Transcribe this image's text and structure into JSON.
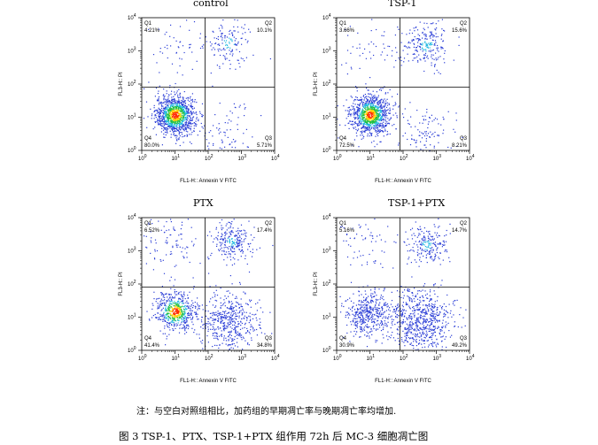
{
  "chart_data": [
    {
      "type": "scatter",
      "title": "control",
      "xlabel": "FL1-H:: Annexin V FITC",
      "ylabel": "FL3-H:: PI",
      "xscale": "log",
      "yscale": "log",
      "xlim": [
        1,
        10000
      ],
      "ylim": [
        1,
        10000
      ],
      "xticks": [
        "10^0",
        "10^1",
        "10^2",
        "10^3",
        "10^4"
      ],
      "yticks": [
        "10^0",
        "10^1",
        "10^2",
        "10^3",
        "10^4"
      ],
      "gate_x": 80,
      "gate_y": 80,
      "quadrants": [
        {
          "name": "Q1",
          "percent": "4.21%"
        },
        {
          "name": "Q2",
          "percent": "10.1%"
        },
        {
          "name": "Q3",
          "percent": "5.71%"
        },
        {
          "name": "Q4",
          "percent": "80.0%"
        }
      ],
      "clusters": [
        {
          "x": 10,
          "y": 12,
          "spread": 0.3,
          "share": 0.8,
          "dense": true
        },
        {
          "x": 400,
          "y": 1800,
          "spread": 0.35,
          "share": 0.1
        },
        {
          "x": 400,
          "y": 3,
          "spread": 0.45,
          "share": 0.06
        },
        {
          "x": 8,
          "y": 1500,
          "spread": 0.5,
          "share": 0.04
        }
      ]
    },
    {
      "type": "scatter",
      "title": "TSP-1",
      "xlabel": "FL1-H:: Annexin V FITC",
      "ylabel": "FL3-H:: PI",
      "xscale": "log",
      "yscale": "log",
      "xlim": [
        1,
        10000
      ],
      "ylim": [
        1,
        10000
      ],
      "xticks": [
        "10^0",
        "10^1",
        "10^2",
        "10^3",
        "10^4"
      ],
      "yticks": [
        "10^0",
        "10^1",
        "10^2",
        "10^3",
        "10^4"
      ],
      "gate_x": 80,
      "gate_y": 80,
      "quadrants": [
        {
          "name": "Q1",
          "percent": "3.66%"
        },
        {
          "name": "Q2",
          "percent": "15.6%"
        },
        {
          "name": "Q3",
          "percent": "8.21%"
        },
        {
          "name": "Q4",
          "percent": "72.5%"
        }
      ],
      "clusters": [
        {
          "x": 10,
          "y": 12,
          "spread": 0.3,
          "share": 0.72,
          "dense": true
        },
        {
          "x": 500,
          "y": 1500,
          "spread": 0.35,
          "share": 0.16
        },
        {
          "x": 400,
          "y": 3,
          "spread": 0.45,
          "share": 0.08
        },
        {
          "x": 8,
          "y": 1500,
          "spread": 0.5,
          "share": 0.04
        }
      ]
    },
    {
      "type": "scatter",
      "title": "PTX",
      "xlabel": "FL1-H:: Annexin V FITC",
      "ylabel": "FL3-H:: PI",
      "xscale": "log",
      "yscale": "log",
      "xlim": [
        1,
        10000
      ],
      "ylim": [
        1,
        10000
      ],
      "xticks": [
        "10^0",
        "10^1",
        "10^2",
        "10^3",
        "10^4"
      ],
      "yticks": [
        "10^0",
        "10^1",
        "10^2",
        "10^3",
        "10^4"
      ],
      "gate_x": 80,
      "gate_y": 80,
      "quadrants": [
        {
          "name": "Q1",
          "percent": "6.52%"
        },
        {
          "name": "Q2",
          "percent": "17.4%"
        },
        {
          "name": "Q3",
          "percent": "34.8%"
        },
        {
          "name": "Q4",
          "percent": "41.4%"
        }
      ],
      "clusters": [
        {
          "x": 10,
          "y": 15,
          "spread": 0.3,
          "share": 0.41,
          "dense": true
        },
        {
          "x": 500,
          "y": 2000,
          "spread": 0.3,
          "share": 0.17
        },
        {
          "x": 400,
          "y": 8,
          "spread": 0.45,
          "share": 0.35
        },
        {
          "x": 8,
          "y": 1500,
          "spread": 0.5,
          "share": 0.07
        }
      ]
    },
    {
      "type": "scatter",
      "title": "TSP-1+PTX",
      "xlabel": "FL1-H:: Annexin V FITC",
      "ylabel": "FL3-H:: PI",
      "xscale": "log",
      "yscale": "log",
      "xlim": [
        1,
        10000
      ],
      "ylim": [
        1,
        10000
      ],
      "xticks": [
        "10^0",
        "10^1",
        "10^2",
        "10^3",
        "10^4"
      ],
      "yticks": [
        "10^0",
        "10^1",
        "10^2",
        "10^3",
        "10^4"
      ],
      "gate_x": 80,
      "gate_y": 80,
      "quadrants": [
        {
          "name": "Q1",
          "percent": "5.16%"
        },
        {
          "name": "Q2",
          "percent": "14.7%"
        },
        {
          "name": "Q3",
          "percent": "49.2%"
        },
        {
          "name": "Q4",
          "percent": "30.9%"
        }
      ],
      "clusters": [
        {
          "x": 9,
          "y": 12,
          "spread": 0.35,
          "share": 0.31,
          "dense": false
        },
        {
          "x": 500,
          "y": 1500,
          "spread": 0.3,
          "share": 0.15
        },
        {
          "x": 300,
          "y": 8,
          "spread": 0.5,
          "share": 0.49
        },
        {
          "x": 8,
          "y": 1500,
          "spread": 0.5,
          "share": 0.05
        }
      ]
    }
  ],
  "note": "注：与空白对照组相比，加药组的早期凋亡率与晚期凋亡率均增加.",
  "caption": "图 3 TSP-1、PTX、TSP-1+PTX 组作用 72h 后 MC-3 细胞凋亡图"
}
